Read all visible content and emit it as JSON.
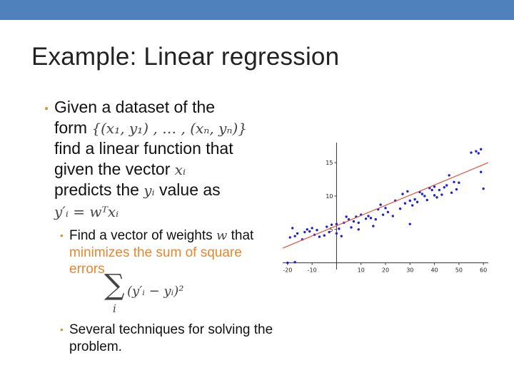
{
  "title": "Example: Linear regression",
  "bullet1": {
    "line1": "Given a dataset of the",
    "form_word": "form",
    "set_notation": "{(x₁, y₁) , … , (xₙ, yₙ)}",
    "line3": "find a linear function that",
    "line4_a": "given the vector",
    "line4_var": "xᵢ",
    "line5_a": "predicts the",
    "line5_var": "yᵢ",
    "line5_b": "value as",
    "equation": "y′ᵢ = wᵀxᵢ"
  },
  "sub1": {
    "text_a": "Find a vector of weights",
    "var_w": "w",
    "text_b": "that",
    "highlight": "minimizes the sum of square errors"
  },
  "sum_formula": {
    "sigma": "∑",
    "index": "i",
    "body": "(y′ᵢ − yᵢ)²"
  },
  "sub2": {
    "text": "Several techniques for solving the problem."
  },
  "colors": {
    "top_bar": "#4f81bd",
    "highlight": "#e9862d",
    "points": "#1f1fd6",
    "fit_line": "#e0503a"
  },
  "chart_data": {
    "type": "scatter",
    "title": "",
    "xlabel": "",
    "ylabel": "",
    "xlim": [
      -22,
      62
    ],
    "ylim": [
      -1,
      18
    ],
    "x_ticks": [
      "-20",
      "-10",
      "10",
      "20",
      "30",
      "40",
      "50",
      "60"
    ],
    "y_ticks": [
      "5",
      "10",
      "15"
    ],
    "fit_line": {
      "x": [
        -22,
        62
      ],
      "y": [
        2.2,
        15.0
      ]
    },
    "points": [
      [
        -20,
        0.0
      ],
      [
        -17,
        0.1
      ],
      [
        -19,
        3.8
      ],
      [
        -18,
        5.2
      ],
      [
        -17,
        4.0
      ],
      [
        -16,
        4.4
      ],
      [
        -14,
        3.5
      ],
      [
        -13,
        4.6
      ],
      [
        -12,
        5.0
      ],
      [
        -11,
        4.7
      ],
      [
        -10,
        5.2
      ],
      [
        -9,
        4.2
      ],
      [
        -8,
        4.9
      ],
      [
        -7,
        3.9
      ],
      [
        -5,
        4.1
      ],
      [
        -4,
        5.4
      ],
      [
        -3,
        4.6
      ],
      [
        -2,
        5.7
      ],
      [
        0,
        4.4
      ],
      [
        0,
        5.8
      ],
      [
        1,
        5.1
      ],
      [
        2,
        4.0
      ],
      [
        3,
        6.0
      ],
      [
        4,
        6.9
      ],
      [
        5,
        6.5
      ],
      [
        6,
        5.3
      ],
      [
        7,
        6.2
      ],
      [
        8,
        6.9
      ],
      [
        9,
        6.0
      ],
      [
        9,
        5.0
      ],
      [
        10,
        7.2
      ],
      [
        12,
        6.6
      ],
      [
        13,
        7.0
      ],
      [
        14,
        6.7
      ],
      [
        15,
        5.5
      ],
      [
        16,
        6.5
      ],
      [
        17,
        8.0
      ],
      [
        18,
        8.7
      ],
      [
        19,
        7.2
      ],
      [
        20,
        8.2
      ],
      [
        21,
        7.6
      ],
      [
        23,
        7.0
      ],
      [
        24,
        9.3
      ],
      [
        26,
        8.1
      ],
      [
        27,
        10.3
      ],
      [
        28,
        8.9
      ],
      [
        29,
        10.7
      ],
      [
        30,
        5.8
      ],
      [
        30,
        9.3
      ],
      [
        31,
        8.6
      ],
      [
        32,
        9.5
      ],
      [
        33,
        9.1
      ],
      [
        34,
        10.6
      ],
      [
        35,
        10.3
      ],
      [
        36,
        10.0
      ],
      [
        37,
        9.4
      ],
      [
        38,
        11.2
      ],
      [
        39,
        10.9
      ],
      [
        40,
        10.1
      ],
      [
        40,
        11.4
      ],
      [
        41,
        9.8
      ],
      [
        42,
        10.9
      ],
      [
        43,
        10.2
      ],
      [
        44,
        11.3
      ],
      [
        45,
        11.6
      ],
      [
        46,
        13.1
      ],
      [
        47,
        10.5
      ],
      [
        48,
        12.1
      ],
      [
        49,
        11.0
      ],
      [
        50,
        12.0
      ],
      [
        55,
        16.5
      ],
      [
        57,
        16.7
      ],
      [
        58,
        16.4
      ],
      [
        59,
        17.0
      ],
      [
        59,
        13.6
      ],
      [
        60,
        11.1
      ]
    ]
  }
}
